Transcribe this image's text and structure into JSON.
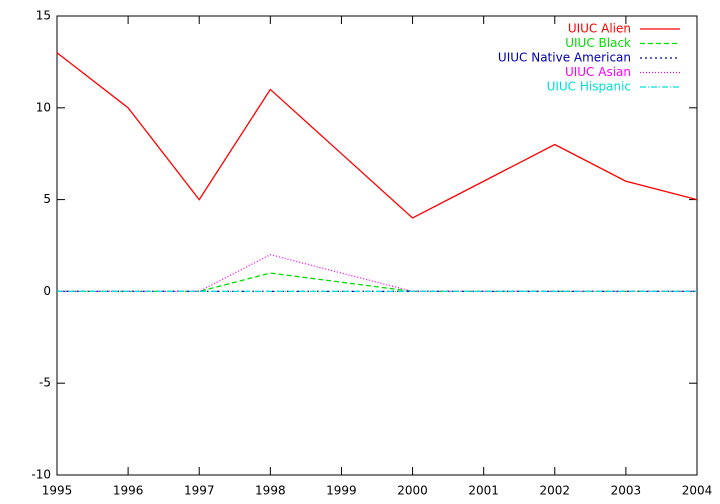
{
  "chart_data": {
    "type": "line",
    "x": [
      1995,
      1996,
      1997,
      1998,
      1999,
      2000,
      2001,
      2002,
      2003,
      2004
    ],
    "series": [
      {
        "name": "UIUC Alien",
        "color": "#ff0000",
        "values": [
          13,
          10,
          5,
          11,
          7.5,
          4,
          6,
          8,
          6,
          5
        ]
      },
      {
        "name": "UIUC Black",
        "color": "#00dd00",
        "values": [
          0,
          0,
          0,
          1,
          0.5,
          0,
          0,
          0,
          0,
          0
        ]
      },
      {
        "name": "UIUC Native American",
        "color": "#0000aa",
        "values": [
          0,
          0,
          0,
          0,
          0,
          0,
          0,
          0,
          0,
          0
        ]
      },
      {
        "name": "UIUC Asian",
        "color": "#ff00ff",
        "values": [
          0,
          0,
          0,
          2,
          1,
          0,
          0,
          0,
          0,
          0
        ]
      },
      {
        "name": "UIUC Hispanic",
        "color": "#00dddd",
        "values": [
          0,
          0,
          0,
          0,
          0,
          0,
          0,
          0,
          0,
          0
        ]
      }
    ],
    "xlim": [
      1995,
      2004
    ],
    "xticks": [
      1995,
      1996,
      1997,
      1998,
      1999,
      2000,
      2001,
      2002,
      2003,
      2004
    ],
    "ylim": [
      -10,
      15
    ],
    "yticks": [
      -10,
      -5,
      0,
      5,
      10,
      15
    ],
    "grid": false,
    "legend": "top-right"
  }
}
